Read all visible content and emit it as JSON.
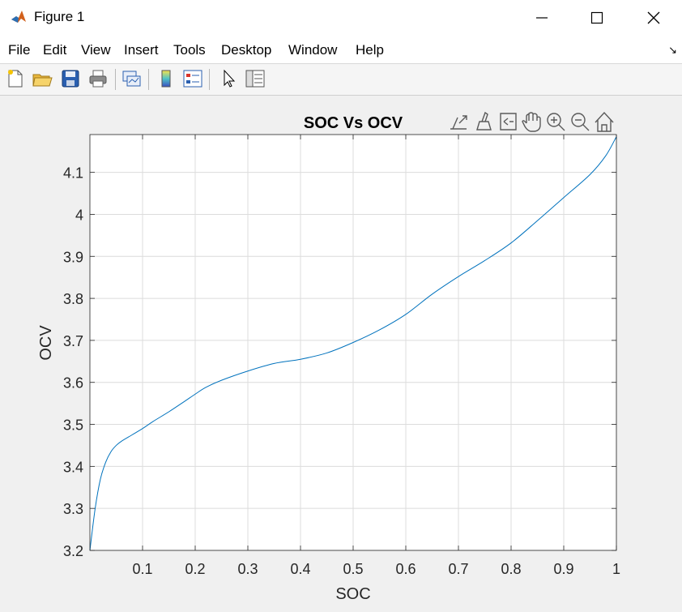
{
  "window": {
    "title": "Figure 1"
  },
  "menu": [
    "File",
    "Edit",
    "View",
    "Insert",
    "Tools",
    "Desktop",
    "Window",
    "Help"
  ],
  "toolbar": [
    "new-figure-icon",
    "open-file-icon",
    "save-icon",
    "print-icon",
    "link-plot-icon",
    "insert-colorbar-icon",
    "insert-legend-icon",
    "edit-plot-icon",
    "property-inspector-icon"
  ],
  "axes_toolbar": [
    "export-icon",
    "brush-icon",
    "data-tips-icon",
    "pan-icon",
    "zoom-in-icon",
    "zoom-out-icon",
    "home-icon"
  ],
  "chart_data": {
    "type": "line",
    "title": "SOC Vs OCV",
    "xlabel": "SOC",
    "ylabel": "OCV",
    "xlim": [
      0,
      1
    ],
    "ylim": [
      3.2,
      4.19
    ],
    "xticks": [
      0.1,
      0.2,
      0.3,
      0.4,
      0.5,
      0.6,
      0.7,
      0.8,
      0.9,
      1
    ],
    "xtick_labels": [
      "0.1",
      "0.2",
      "0.3",
      "0.4",
      "0.5",
      "0.6",
      "0.7",
      "0.8",
      "0.9",
      "1"
    ],
    "yticks": [
      3.2,
      3.3,
      3.4,
      3.5,
      3.6,
      3.7,
      3.8,
      3.9,
      4.0,
      4.1
    ],
    "ytick_labels": [
      "3.2",
      "3.3",
      "3.4",
      "3.5",
      "3.6",
      "3.7",
      "3.8",
      "3.9",
      "4",
      "4.1"
    ],
    "grid": true,
    "series": [
      {
        "color": "#0072bd",
        "x": [
          0,
          0.01,
          0.02,
          0.03,
          0.04,
          0.05,
          0.06,
          0.08,
          0.1,
          0.12,
          0.15,
          0.18,
          0.2,
          0.22,
          0.25,
          0.3,
          0.35,
          0.4,
          0.45,
          0.5,
          0.55,
          0.6,
          0.65,
          0.7,
          0.75,
          0.8,
          0.85,
          0.9,
          0.95,
          0.98,
          1
        ],
        "y": [
          3.2,
          3.3,
          3.37,
          3.41,
          3.435,
          3.45,
          3.46,
          3.475,
          3.49,
          3.507,
          3.53,
          3.555,
          3.572,
          3.588,
          3.605,
          3.627,
          3.645,
          3.655,
          3.67,
          3.695,
          3.725,
          3.762,
          3.81,
          3.852,
          3.89,
          3.932,
          3.985,
          4.04,
          4.095,
          4.14,
          4.185
        ]
      }
    ]
  }
}
